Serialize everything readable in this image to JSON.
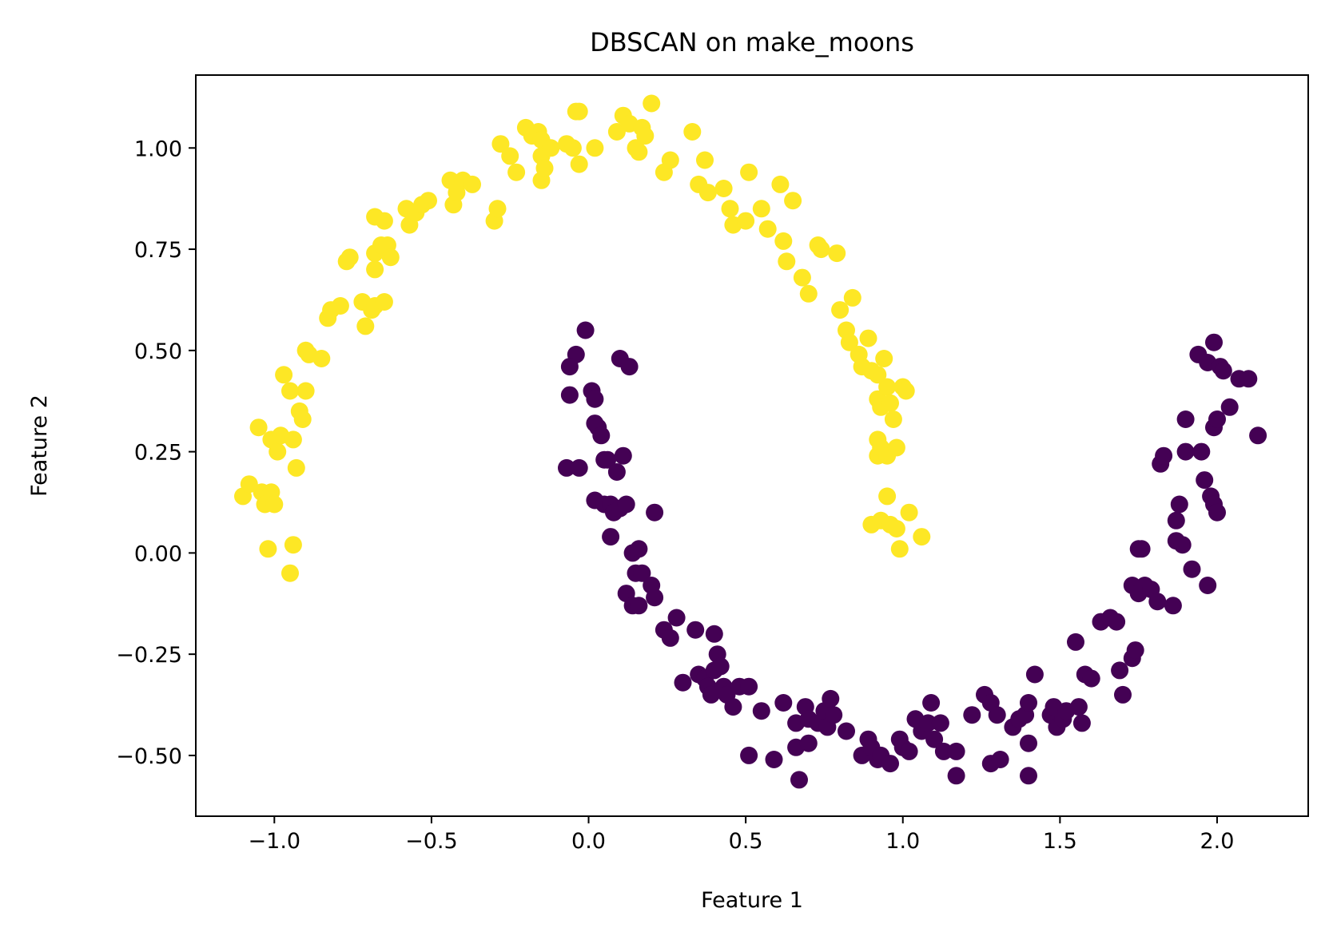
{
  "chart_data": {
    "type": "scatter",
    "title": "DBSCAN on make_moons",
    "xlabel": "Feature 1",
    "ylabel": "Feature 2",
    "xlim": [
      -1.25,
      2.29
    ],
    "ylim": [
      -0.65,
      1.18
    ],
    "xticks": [
      -1.0,
      -0.5,
      0.0,
      0.5,
      1.0,
      1.5,
      2.0
    ],
    "xtick_labels": [
      "−1.0",
      "−0.5",
      "0.0",
      "0.5",
      "1.0",
      "1.5",
      "2.0"
    ],
    "yticks": [
      -0.5,
      -0.25,
      0.0,
      0.25,
      0.5,
      0.75,
      1.0
    ],
    "ytick_labels": [
      "−0.50",
      "−0.25",
      "0.00",
      "0.25",
      "0.50",
      "0.75",
      "1.00"
    ],
    "grid": false,
    "legend": false,
    "series": [
      {
        "color": "#fde725",
        "points": [
          [
            -1.1,
            0.14
          ],
          [
            -1.08,
            0.17
          ],
          [
            -1.04,
            0.15
          ],
          [
            -1.03,
            0.12
          ],
          [
            -1.01,
            0.15
          ],
          [
            -1.0,
            0.12
          ],
          [
            -1.02,
            0.01
          ],
          [
            -0.94,
            0.02
          ],
          [
            -0.95,
            -0.05
          ],
          [
            -1.05,
            0.31
          ],
          [
            -1.01,
            0.28
          ],
          [
            -0.99,
            0.25
          ],
          [
            -0.98,
            0.29
          ],
          [
            -0.94,
            0.28
          ],
          [
            -0.93,
            0.21
          ],
          [
            -0.92,
            0.35
          ],
          [
            -0.91,
            0.33
          ],
          [
            -0.9,
            0.4
          ],
          [
            -0.97,
            0.44
          ],
          [
            -0.95,
            0.4
          ],
          [
            -0.9,
            0.5
          ],
          [
            -0.89,
            0.49
          ],
          [
            -0.85,
            0.48
          ],
          [
            -0.83,
            0.58
          ],
          [
            -0.82,
            0.6
          ],
          [
            -0.79,
            0.61
          ],
          [
            -0.77,
            0.72
          ],
          [
            -0.76,
            0.73
          ],
          [
            -0.72,
            0.62
          ],
          [
            -0.71,
            0.56
          ],
          [
            -0.69,
            0.6
          ],
          [
            -0.68,
            0.61
          ],
          [
            -0.65,
            0.62
          ],
          [
            -0.68,
            0.7
          ],
          [
            -0.68,
            0.74
          ],
          [
            -0.66,
            0.76
          ],
          [
            -0.64,
            0.76
          ],
          [
            -0.63,
            0.73
          ],
          [
            -0.68,
            0.83
          ],
          [
            -0.65,
            0.82
          ],
          [
            -0.58,
            0.85
          ],
          [
            -0.57,
            0.81
          ],
          [
            -0.55,
            0.84
          ],
          [
            -0.53,
            0.86
          ],
          [
            -0.51,
            0.87
          ],
          [
            -0.44,
            0.92
          ],
          [
            -0.43,
            0.86
          ],
          [
            -0.42,
            0.89
          ],
          [
            -0.4,
            0.92
          ],
          [
            -0.37,
            0.91
          ],
          [
            -0.3,
            0.82
          ],
          [
            -0.29,
            0.85
          ],
          [
            -0.28,
            1.01
          ],
          [
            -0.25,
            0.98
          ],
          [
            -0.23,
            0.94
          ],
          [
            -0.2,
            1.05
          ],
          [
            -0.18,
            1.03
          ],
          [
            -0.16,
            1.04
          ],
          [
            -0.15,
            1.02
          ],
          [
            -0.15,
            0.98
          ],
          [
            -0.15,
            0.92
          ],
          [
            -0.14,
            0.95
          ],
          [
            -0.12,
            1.0
          ],
          [
            -0.07,
            1.01
          ],
          [
            -0.05,
            1.0
          ],
          [
            -0.04,
            1.09
          ],
          [
            -0.03,
            1.09
          ],
          [
            -0.03,
            0.96
          ],
          [
            0.02,
            1.0
          ],
          [
            0.09,
            1.04
          ],
          [
            0.11,
            1.08
          ],
          [
            0.13,
            1.06
          ],
          [
            0.15,
            1.0
          ],
          [
            0.16,
            0.99
          ],
          [
            0.17,
            1.05
          ],
          [
            0.18,
            1.03
          ],
          [
            0.2,
            1.11
          ],
          [
            0.24,
            0.94
          ],
          [
            0.26,
            0.97
          ],
          [
            0.33,
            1.04
          ],
          [
            0.35,
            0.91
          ],
          [
            0.37,
            0.97
          ],
          [
            0.38,
            0.89
          ],
          [
            0.43,
            0.9
          ],
          [
            0.45,
            0.85
          ],
          [
            0.46,
            0.81
          ],
          [
            0.5,
            0.82
          ],
          [
            0.51,
            0.94
          ],
          [
            0.55,
            0.85
          ],
          [
            0.57,
            0.8
          ],
          [
            0.61,
            0.91
          ],
          [
            0.62,
            0.77
          ],
          [
            0.63,
            0.72
          ],
          [
            0.65,
            0.87
          ],
          [
            0.68,
            0.68
          ],
          [
            0.7,
            0.64
          ],
          [
            0.73,
            0.76
          ],
          [
            0.74,
            0.75
          ],
          [
            0.79,
            0.74
          ],
          [
            0.8,
            0.6
          ],
          [
            0.82,
            0.55
          ],
          [
            0.83,
            0.52
          ],
          [
            0.84,
            0.63
          ],
          [
            0.86,
            0.49
          ],
          [
            0.87,
            0.46
          ],
          [
            0.89,
            0.53
          ],
          [
            0.9,
            0.45
          ],
          [
            0.92,
            0.44
          ],
          [
            0.94,
            0.48
          ],
          [
            0.92,
            0.38
          ],
          [
            0.93,
            0.36
          ],
          [
            0.95,
            0.41
          ],
          [
            0.96,
            0.37
          ],
          [
            0.97,
            0.33
          ],
          [
            0.92,
            0.28
          ],
          [
            0.92,
            0.24
          ],
          [
            0.93,
            0.26
          ],
          [
            0.95,
            0.24
          ],
          [
            0.98,
            0.26
          ],
          [
            1.0,
            0.41
          ],
          [
            1.01,
            0.4
          ],
          [
            0.95,
            0.14
          ],
          [
            0.9,
            0.07
          ],
          [
            0.93,
            0.08
          ],
          [
            0.96,
            0.07
          ],
          [
            0.98,
            0.06
          ],
          [
            0.99,
            0.01
          ],
          [
            1.02,
            0.1
          ],
          [
            1.06,
            0.04
          ]
        ]
      },
      {
        "color": "#440154",
        "points": [
          [
            -0.01,
            0.55
          ],
          [
            -0.04,
            0.49
          ],
          [
            -0.06,
            0.46
          ],
          [
            -0.06,
            0.39
          ],
          [
            -0.07,
            0.21
          ],
          [
            -0.03,
            0.21
          ],
          [
            0.01,
            0.4
          ],
          [
            0.02,
            0.38
          ],
          [
            0.02,
            0.32
          ],
          [
            0.03,
            0.31
          ],
          [
            0.04,
            0.29
          ],
          [
            0.05,
            0.23
          ],
          [
            0.06,
            0.23
          ],
          [
            0.09,
            0.2
          ],
          [
            0.11,
            0.24
          ],
          [
            0.1,
            0.48
          ],
          [
            0.13,
            0.46
          ],
          [
            0.02,
            0.13
          ],
          [
            0.05,
            0.12
          ],
          [
            0.07,
            0.12
          ],
          [
            0.08,
            0.1
          ],
          [
            0.1,
            0.11
          ],
          [
            0.12,
            0.12
          ],
          [
            0.07,
            0.04
          ],
          [
            0.14,
            0.0
          ],
          [
            0.16,
            0.01
          ],
          [
            0.21,
            0.1
          ],
          [
            0.15,
            -0.05
          ],
          [
            0.17,
            -0.05
          ],
          [
            0.2,
            -0.08
          ],
          [
            0.21,
            -0.11
          ],
          [
            0.12,
            -0.1
          ],
          [
            0.14,
            -0.13
          ],
          [
            0.16,
            -0.13
          ],
          [
            0.24,
            -0.19
          ],
          [
            0.26,
            -0.21
          ],
          [
            0.28,
            -0.16
          ],
          [
            0.3,
            -0.32
          ],
          [
            0.34,
            -0.19
          ],
          [
            0.35,
            -0.3
          ],
          [
            0.37,
            -0.31
          ],
          [
            0.38,
            -0.33
          ],
          [
            0.39,
            -0.35
          ],
          [
            0.4,
            -0.29
          ],
          [
            0.41,
            -0.25
          ],
          [
            0.42,
            -0.28
          ],
          [
            0.43,
            -0.33
          ],
          [
            0.4,
            -0.2
          ],
          [
            0.44,
            -0.35
          ],
          [
            0.46,
            -0.38
          ],
          [
            0.48,
            -0.33
          ],
          [
            0.51,
            -0.33
          ],
          [
            0.55,
            -0.39
          ],
          [
            0.51,
            -0.5
          ],
          [
            0.59,
            -0.51
          ],
          [
            0.62,
            -0.37
          ],
          [
            0.66,
            -0.42
          ],
          [
            0.66,
            -0.48
          ],
          [
            0.67,
            -0.56
          ],
          [
            0.69,
            -0.38
          ],
          [
            0.7,
            -0.41
          ],
          [
            0.7,
            -0.47
          ],
          [
            0.73,
            -0.42
          ],
          [
            0.75,
            -0.39
          ],
          [
            0.77,
            -0.36
          ],
          [
            0.76,
            -0.43
          ],
          [
            0.78,
            -0.4
          ],
          [
            0.82,
            -0.44
          ],
          [
            0.87,
            -0.5
          ],
          [
            0.89,
            -0.46
          ],
          [
            0.9,
            -0.48
          ],
          [
            0.92,
            -0.51
          ],
          [
            0.93,
            -0.5
          ],
          [
            0.96,
            -0.52
          ],
          [
            0.99,
            -0.46
          ],
          [
            1.0,
            -0.48
          ],
          [
            1.02,
            -0.49
          ],
          [
            1.04,
            -0.41
          ],
          [
            1.06,
            -0.44
          ],
          [
            1.09,
            -0.37
          ],
          [
            1.08,
            -0.42
          ],
          [
            1.1,
            -0.46
          ],
          [
            1.12,
            -0.42
          ],
          [
            1.13,
            -0.49
          ],
          [
            1.17,
            -0.49
          ],
          [
            1.17,
            -0.55
          ],
          [
            1.22,
            -0.4
          ],
          [
            1.26,
            -0.35
          ],
          [
            1.28,
            -0.52
          ],
          [
            1.31,
            -0.51
          ],
          [
            1.28,
            -0.37
          ],
          [
            1.3,
            -0.4
          ],
          [
            1.35,
            -0.43
          ],
          [
            1.37,
            -0.41
          ],
          [
            1.39,
            -0.4
          ],
          [
            1.4,
            -0.37
          ],
          [
            1.4,
            -0.47
          ],
          [
            1.4,
            -0.55
          ],
          [
            1.42,
            -0.3
          ],
          [
            1.47,
            -0.4
          ],
          [
            1.48,
            -0.38
          ],
          [
            1.49,
            -0.43
          ],
          [
            1.51,
            -0.41
          ],
          [
            1.52,
            -0.39
          ],
          [
            1.55,
            -0.22
          ],
          [
            1.56,
            -0.38
          ],
          [
            1.57,
            -0.42
          ],
          [
            1.58,
            -0.3
          ],
          [
            1.6,
            -0.31
          ],
          [
            1.63,
            -0.17
          ],
          [
            1.66,
            -0.16
          ],
          [
            1.68,
            -0.17
          ],
          [
            1.69,
            -0.29
          ],
          [
            1.7,
            -0.35
          ],
          [
            1.73,
            -0.26
          ],
          [
            1.74,
            -0.24
          ],
          [
            1.73,
            -0.08
          ],
          [
            1.75,
            -0.1
          ],
          [
            1.77,
            -0.08
          ],
          [
            1.79,
            -0.09
          ],
          [
            1.81,
            -0.12
          ],
          [
            1.75,
            0.01
          ],
          [
            1.76,
            0.01
          ],
          [
            1.86,
            -0.13
          ],
          [
            1.87,
            0.03
          ],
          [
            1.89,
            0.02
          ],
          [
            1.87,
            0.08
          ],
          [
            1.88,
            0.12
          ],
          [
            1.92,
            -0.04
          ],
          [
            1.97,
            -0.08
          ],
          [
            1.9,
            0.25
          ],
          [
            1.9,
            0.33
          ],
          [
            1.95,
            0.25
          ],
          [
            1.96,
            0.18
          ],
          [
            1.98,
            0.14
          ],
          [
            1.99,
            0.12
          ],
          [
            2.0,
            0.1
          ],
          [
            1.82,
            0.22
          ],
          [
            1.83,
            0.24
          ],
          [
            1.94,
            0.49
          ],
          [
            1.97,
            0.47
          ],
          [
            1.99,
            0.52
          ],
          [
            1.99,
            0.31
          ],
          [
            2.0,
            0.33
          ],
          [
            2.01,
            0.46
          ],
          [
            2.02,
            0.45
          ],
          [
            2.04,
            0.36
          ],
          [
            2.07,
            0.43
          ],
          [
            2.1,
            0.43
          ],
          [
            2.13,
            0.29
          ]
        ]
      }
    ]
  }
}
